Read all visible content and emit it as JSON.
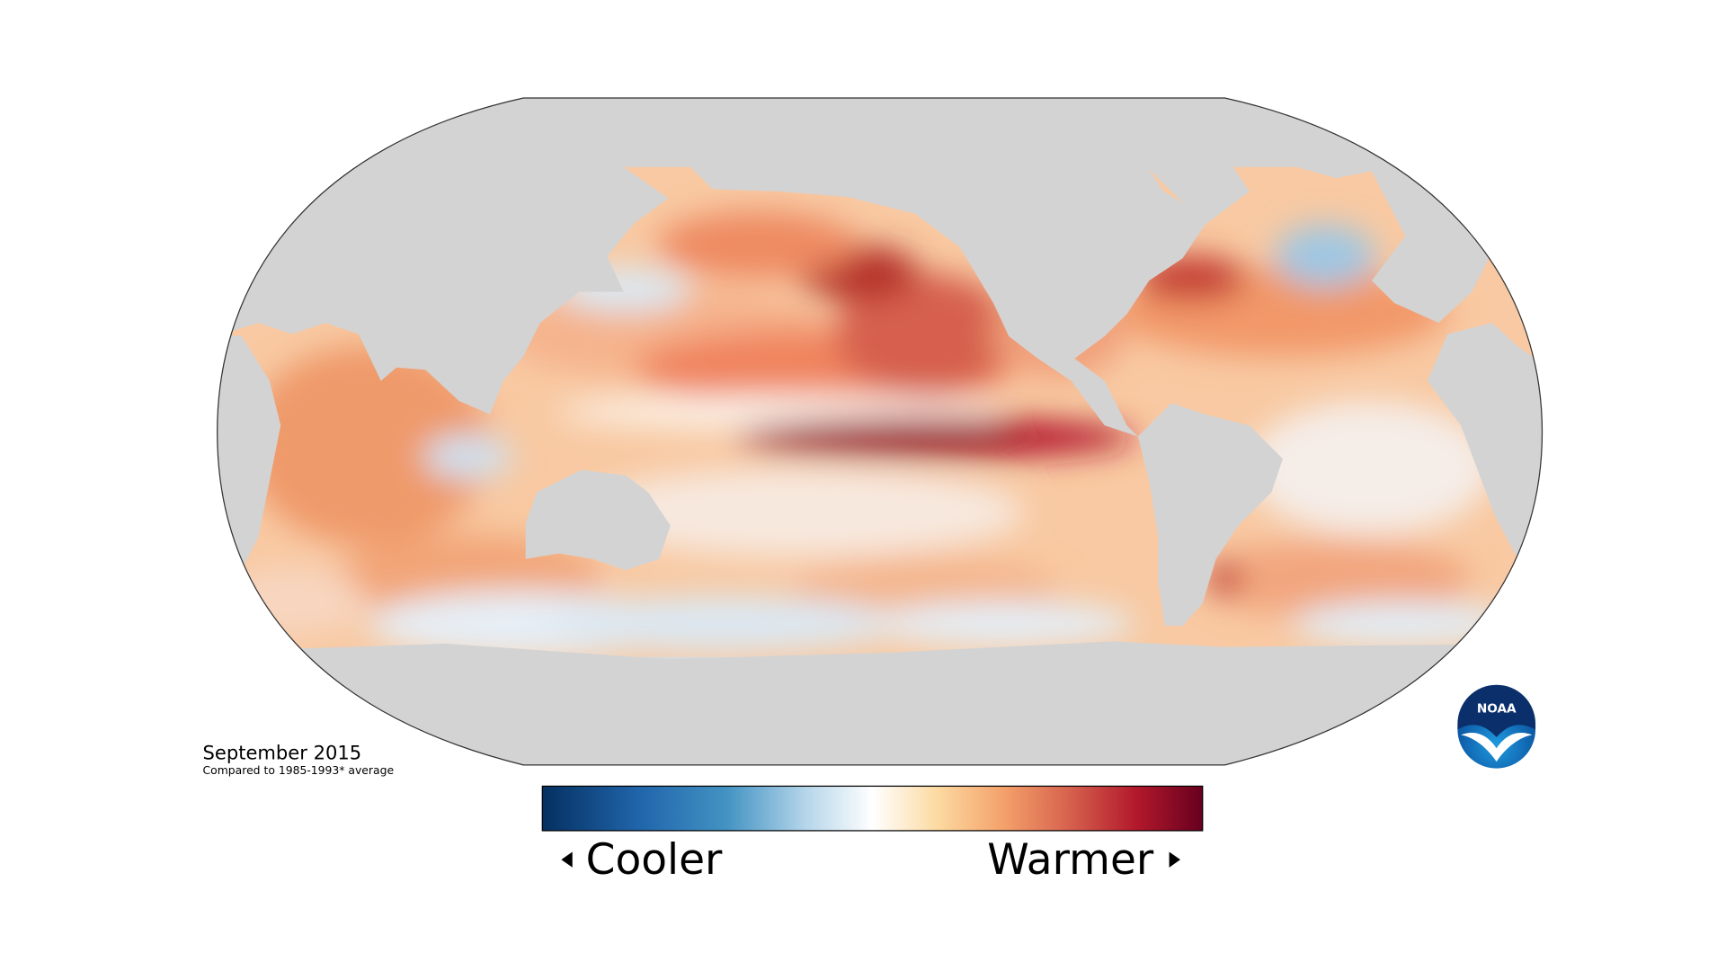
{
  "map": {
    "title": "September 2015",
    "subtitle": "Compared to 1985-1993* average"
  },
  "legend": {
    "low_label": "Cooler",
    "high_label": "Warmer"
  },
  "logo": {
    "text": "NOAA"
  }
}
